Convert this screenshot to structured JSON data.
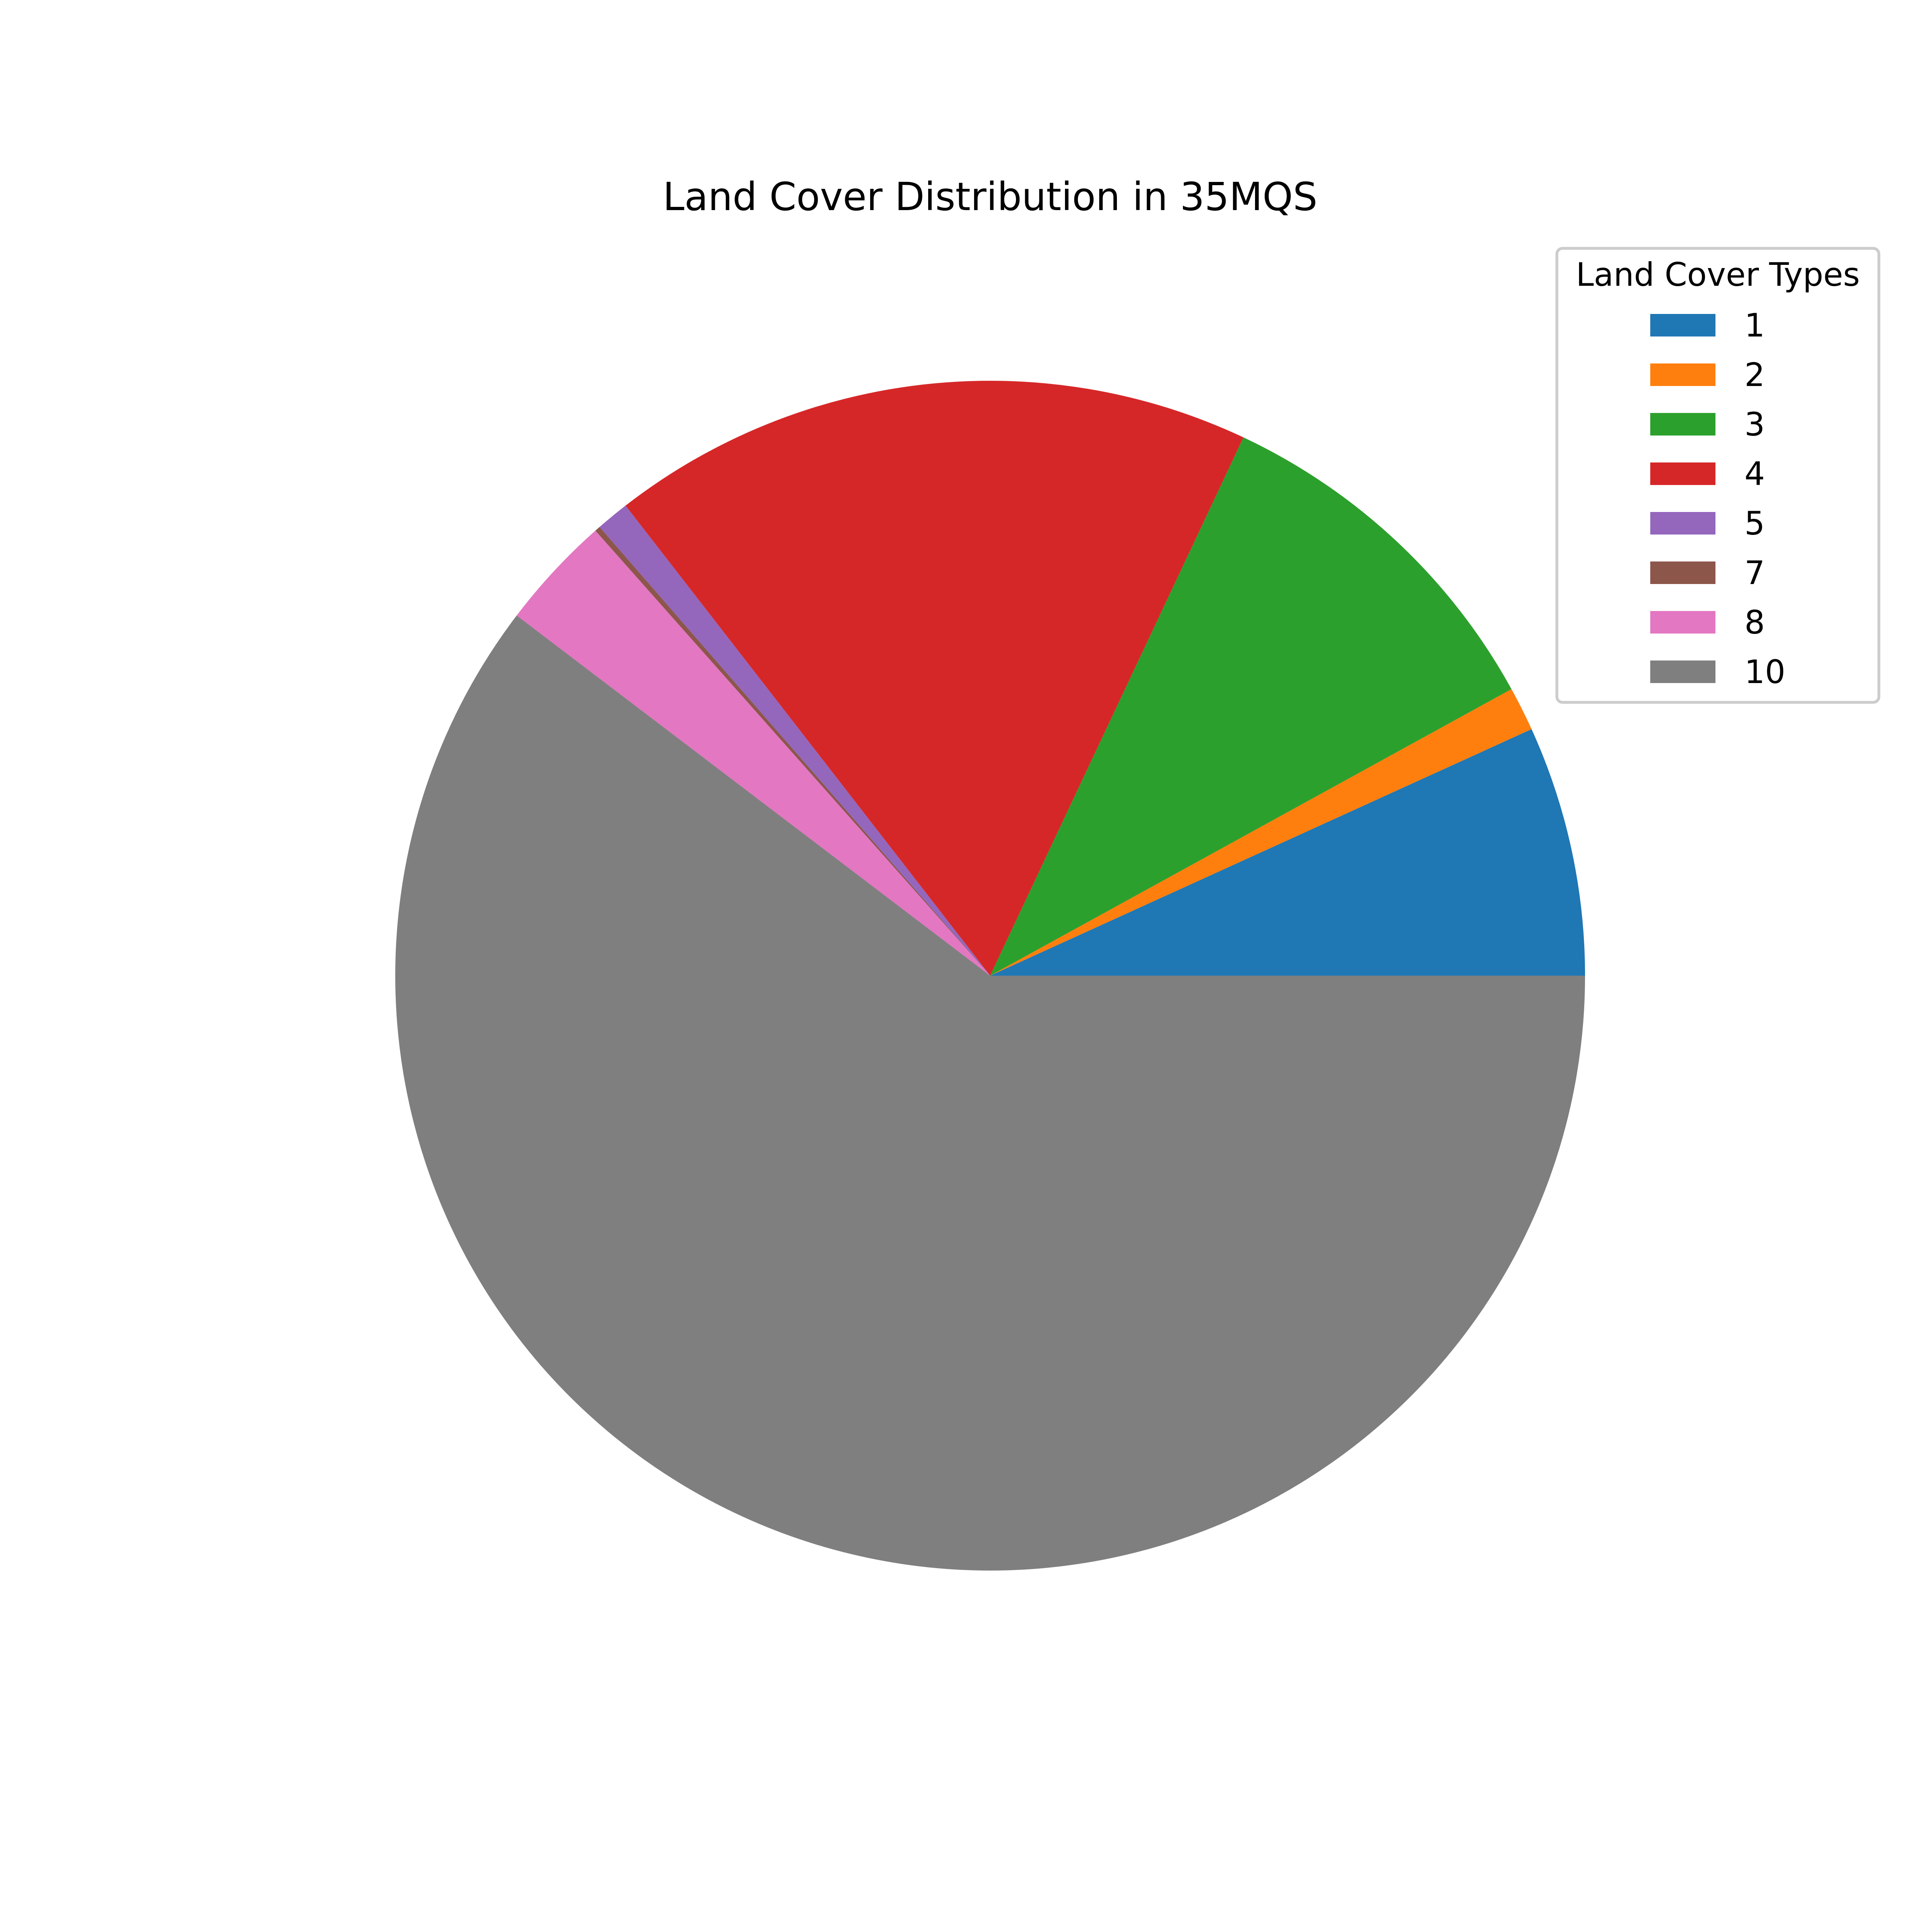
{
  "chart_data": {
    "type": "pie",
    "title": "Land Cover Distribution in 35MQS",
    "categories": [
      "1",
      "2",
      "3",
      "4",
      "5",
      "7",
      "8",
      "10"
    ],
    "values": [
      6.8,
      1.2,
      10.0,
      17.5,
      0.9,
      0.15,
      3.1,
      60.35
    ],
    "colors": [
      "#1f77b4",
      "#ff7f0e",
      "#2ca02c",
      "#d62728",
      "#9467bd",
      "#8c564b",
      "#e377c2",
      "#7f7f7f"
    ],
    "start_angle_deg": 0,
    "direction": "counterclockwise",
    "legend": {
      "title": "Land Cover Types",
      "location": "top-right"
    }
  }
}
